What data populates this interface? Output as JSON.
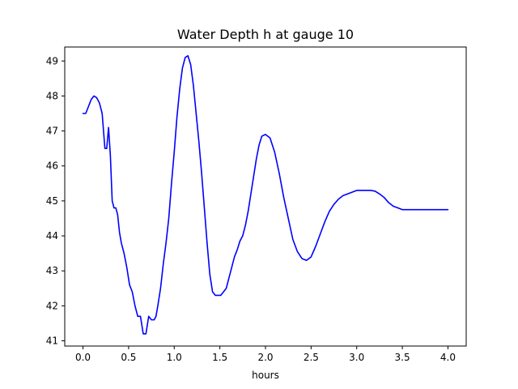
{
  "chart_data": {
    "type": "line",
    "title": "Water Depth h at gauge 10",
    "xlabel": "hours",
    "ylabel": "",
    "xlim": [
      -0.2,
      4.2
    ],
    "ylim": [
      40.85,
      49.4
    ],
    "xticks": [
      0.0,
      0.5,
      1.0,
      1.5,
      2.0,
      2.5,
      3.0,
      3.5,
      4.0
    ],
    "xtick_labels": [
      "0.0",
      "0.5",
      "1.0",
      "1.5",
      "2.0",
      "2.5",
      "3.0",
      "3.5",
      "4.0"
    ],
    "yticks": [
      41,
      42,
      43,
      44,
      45,
      46,
      47,
      48,
      49
    ],
    "ytick_labels": [
      "41",
      "42",
      "43",
      "44",
      "45",
      "46",
      "47",
      "48",
      "49"
    ],
    "grid": false,
    "series": [
      {
        "color": "#0000ff",
        "x": [
          0.0,
          0.03,
          0.06,
          0.09,
          0.12,
          0.15,
          0.18,
          0.21,
          0.24,
          0.26,
          0.28,
          0.3,
          0.32,
          0.34,
          0.36,
          0.38,
          0.4,
          0.42,
          0.45,
          0.48,
          0.51,
          0.54,
          0.57,
          0.6,
          0.63,
          0.66,
          0.69,
          0.72,
          0.75,
          0.78,
          0.8,
          0.82,
          0.85,
          0.88,
          0.91,
          0.94,
          0.97,
          1.0,
          1.03,
          1.06,
          1.09,
          1.12,
          1.15,
          1.18,
          1.21,
          1.24,
          1.27,
          1.3,
          1.33,
          1.36,
          1.39,
          1.42,
          1.45,
          1.48,
          1.51,
          1.54,
          1.57,
          1.6,
          1.63,
          1.66,
          1.69,
          1.72,
          1.75,
          1.78,
          1.81,
          1.84,
          1.87,
          1.9,
          1.93,
          1.96,
          2.0,
          2.05,
          2.1,
          2.15,
          2.2,
          2.25,
          2.3,
          2.35,
          2.4,
          2.45,
          2.5,
          2.55,
          2.6,
          2.65,
          2.7,
          2.75,
          2.8,
          2.85,
          2.9,
          2.95,
          3.0,
          3.05,
          3.1,
          3.15,
          3.2,
          3.25,
          3.3,
          3.35,
          3.4,
          3.45,
          3.5,
          3.55,
          3.6,
          3.65,
          3.7,
          3.75,
          3.8,
          3.85,
          3.9,
          3.95,
          4.0
        ],
        "y": [
          47.5,
          47.5,
          47.7,
          47.9,
          48.0,
          47.95,
          47.8,
          47.5,
          46.5,
          46.5,
          47.1,
          46.3,
          45.0,
          44.8,
          44.8,
          44.6,
          44.1,
          43.8,
          43.5,
          43.1,
          42.6,
          42.4,
          42.0,
          41.7,
          41.7,
          41.2,
          41.2,
          41.7,
          41.6,
          41.6,
          41.7,
          42.0,
          42.5,
          43.2,
          43.8,
          44.5,
          45.5,
          46.4,
          47.4,
          48.2,
          48.8,
          49.1,
          49.15,
          48.9,
          48.3,
          47.5,
          46.7,
          45.8,
          44.8,
          43.8,
          42.9,
          42.4,
          42.3,
          42.3,
          42.3,
          42.4,
          42.5,
          42.8,
          43.1,
          43.4,
          43.6,
          43.85,
          44.0,
          44.3,
          44.7,
          45.2,
          45.7,
          46.2,
          46.6,
          46.85,
          46.9,
          46.8,
          46.4,
          45.8,
          45.1,
          44.5,
          43.9,
          43.55,
          43.35,
          43.3,
          43.4,
          43.7,
          44.05,
          44.4,
          44.7,
          44.9,
          45.05,
          45.15,
          45.2,
          45.25,
          45.3,
          45.3,
          45.3,
          45.3,
          45.28,
          45.2,
          45.1,
          44.95,
          44.85,
          44.8,
          44.75,
          44.75,
          44.75,
          44.75,
          44.75,
          44.75,
          44.75,
          44.75,
          44.75,
          44.75,
          44.75
        ]
      }
    ]
  }
}
